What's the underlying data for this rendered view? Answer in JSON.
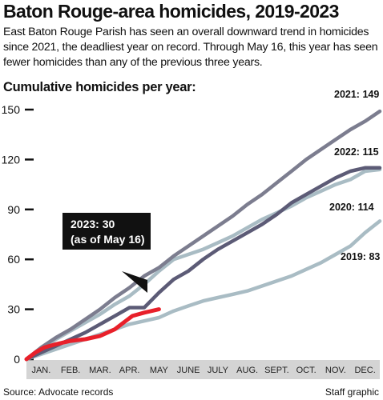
{
  "header": {
    "title": "Baton Rouge-area homicides, 2019-2023",
    "subtitle": "East Baton Rouge Parish has seen an overall downward trend in homicides since 2021, the deadliest year on record. Through May 16, this year has seen fewer homicides than any of the previous three years.",
    "chart_label": "Cumulative homicides per year:"
  },
  "footer": {
    "source": "Source: Advocate records",
    "credit": "Staff graphic"
  },
  "colors": {
    "y2019": "#a9bcc4",
    "y2020": "#a9bcc4",
    "y2021": "#7c7d8f",
    "y2022": "#5c5b76",
    "y2023": "#e8202a",
    "month_band": "#d4d4d4",
    "callout_bg": "#111111"
  },
  "chart_data": {
    "type": "line",
    "title": "Cumulative homicides per year:",
    "categories": [
      "JAN.",
      "FEB.",
      "MAR.",
      "APR.",
      "MAY",
      "JUNE",
      "JULY",
      "AUG.",
      "SEPT.",
      "OCT.",
      "NOV.",
      "DEC."
    ],
    "ylim": [
      0,
      150
    ],
    "yticks": [
      0,
      30,
      60,
      90,
      120,
      150
    ],
    "x_unit": "month (0 = Jan. 1, 12 = Dec. 31)",
    "grid": false,
    "series": [
      {
        "name": "2019",
        "label": "2019: 83",
        "final": 83,
        "color_key": "y2019",
        "points": [
          [
            0,
            0
          ],
          [
            0.5,
            3
          ],
          [
            1,
            6
          ],
          [
            1.5,
            9
          ],
          [
            2,
            12
          ],
          [
            2.5,
            15
          ],
          [
            3,
            18
          ],
          [
            3.5,
            21
          ],
          [
            4,
            23
          ],
          [
            4.5,
            25
          ],
          [
            5,
            29
          ],
          [
            5.5,
            32
          ],
          [
            6,
            35
          ],
          [
            6.5,
            37
          ],
          [
            7,
            39
          ],
          [
            7.5,
            41
          ],
          [
            8,
            44
          ],
          [
            8.5,
            47
          ],
          [
            9,
            50
          ],
          [
            9.5,
            54
          ],
          [
            10,
            58
          ],
          [
            10.5,
            63
          ],
          [
            11,
            68
          ],
          [
            11.5,
            76
          ],
          [
            12,
            83
          ]
        ]
      },
      {
        "name": "2020",
        "label": "2020: 114",
        "final": 114,
        "color_key": "y2020",
        "points": [
          [
            0,
            0
          ],
          [
            0.5,
            6
          ],
          [
            1,
            12
          ],
          [
            1.5,
            17
          ],
          [
            2,
            22
          ],
          [
            2.5,
            27
          ],
          [
            3,
            33
          ],
          [
            3.5,
            38
          ],
          [
            4,
            45
          ],
          [
            4.5,
            53
          ],
          [
            5,
            60
          ],
          [
            5.5,
            63
          ],
          [
            6,
            66
          ],
          [
            6.5,
            70
          ],
          [
            7,
            74
          ],
          [
            7.5,
            79
          ],
          [
            8,
            84
          ],
          [
            8.5,
            88
          ],
          [
            9,
            92
          ],
          [
            9.5,
            97
          ],
          [
            10,
            101
          ],
          [
            10.5,
            105
          ],
          [
            11,
            108
          ],
          [
            11.5,
            113
          ],
          [
            12,
            114
          ]
        ]
      },
      {
        "name": "2021",
        "label": "2021: 149",
        "final": 149,
        "color_key": "y2021",
        "points": [
          [
            0,
            0
          ],
          [
            0.5,
            7
          ],
          [
            1,
            13
          ],
          [
            1.5,
            18
          ],
          [
            2,
            24
          ],
          [
            2.5,
            30
          ],
          [
            3,
            37
          ],
          [
            3.5,
            43
          ],
          [
            4,
            50
          ],
          [
            4.5,
            55
          ],
          [
            5,
            62
          ],
          [
            5.5,
            68
          ],
          [
            6,
            74
          ],
          [
            6.5,
            80
          ],
          [
            7,
            86
          ],
          [
            7.5,
            93
          ],
          [
            8,
            99
          ],
          [
            8.5,
            106
          ],
          [
            9,
            113
          ],
          [
            9.5,
            120
          ],
          [
            10,
            126
          ],
          [
            10.5,
            132
          ],
          [
            11,
            138
          ],
          [
            11.5,
            143
          ],
          [
            12,
            149
          ]
        ]
      },
      {
        "name": "2022",
        "label": "2022: 115",
        "final": 115,
        "color_key": "y2022",
        "points": [
          [
            0,
            0
          ],
          [
            0.5,
            4
          ],
          [
            1,
            8
          ],
          [
            1.5,
            12
          ],
          [
            2,
            16
          ],
          [
            2.5,
            21
          ],
          [
            3,
            26
          ],
          [
            3.5,
            31
          ],
          [
            4,
            31
          ],
          [
            4.5,
            40
          ],
          [
            5,
            48
          ],
          [
            5.5,
            53
          ],
          [
            6,
            60
          ],
          [
            6.5,
            66
          ],
          [
            7,
            71
          ],
          [
            7.5,
            76
          ],
          [
            8,
            81
          ],
          [
            8.5,
            87
          ],
          [
            9,
            94
          ],
          [
            9.5,
            99
          ],
          [
            10,
            104
          ],
          [
            10.5,
            109
          ],
          [
            11,
            113
          ],
          [
            11.5,
            115
          ],
          [
            12,
            115
          ]
        ]
      },
      {
        "name": "2023",
        "label": "2023: 30",
        "final": 30,
        "color_key": "y2023",
        "points": [
          [
            0,
            0
          ],
          [
            0.3,
            4
          ],
          [
            0.6,
            7
          ],
          [
            1,
            9
          ],
          [
            1.5,
            11
          ],
          [
            2,
            12
          ],
          [
            2.5,
            14
          ],
          [
            3,
            18
          ],
          [
            3.3,
            22
          ],
          [
            3.6,
            26
          ],
          [
            4,
            28
          ],
          [
            4.5,
            30
          ]
        ]
      }
    ],
    "annotation": {
      "line1": "2023: 30",
      "line2": "(as of May 16)"
    }
  }
}
